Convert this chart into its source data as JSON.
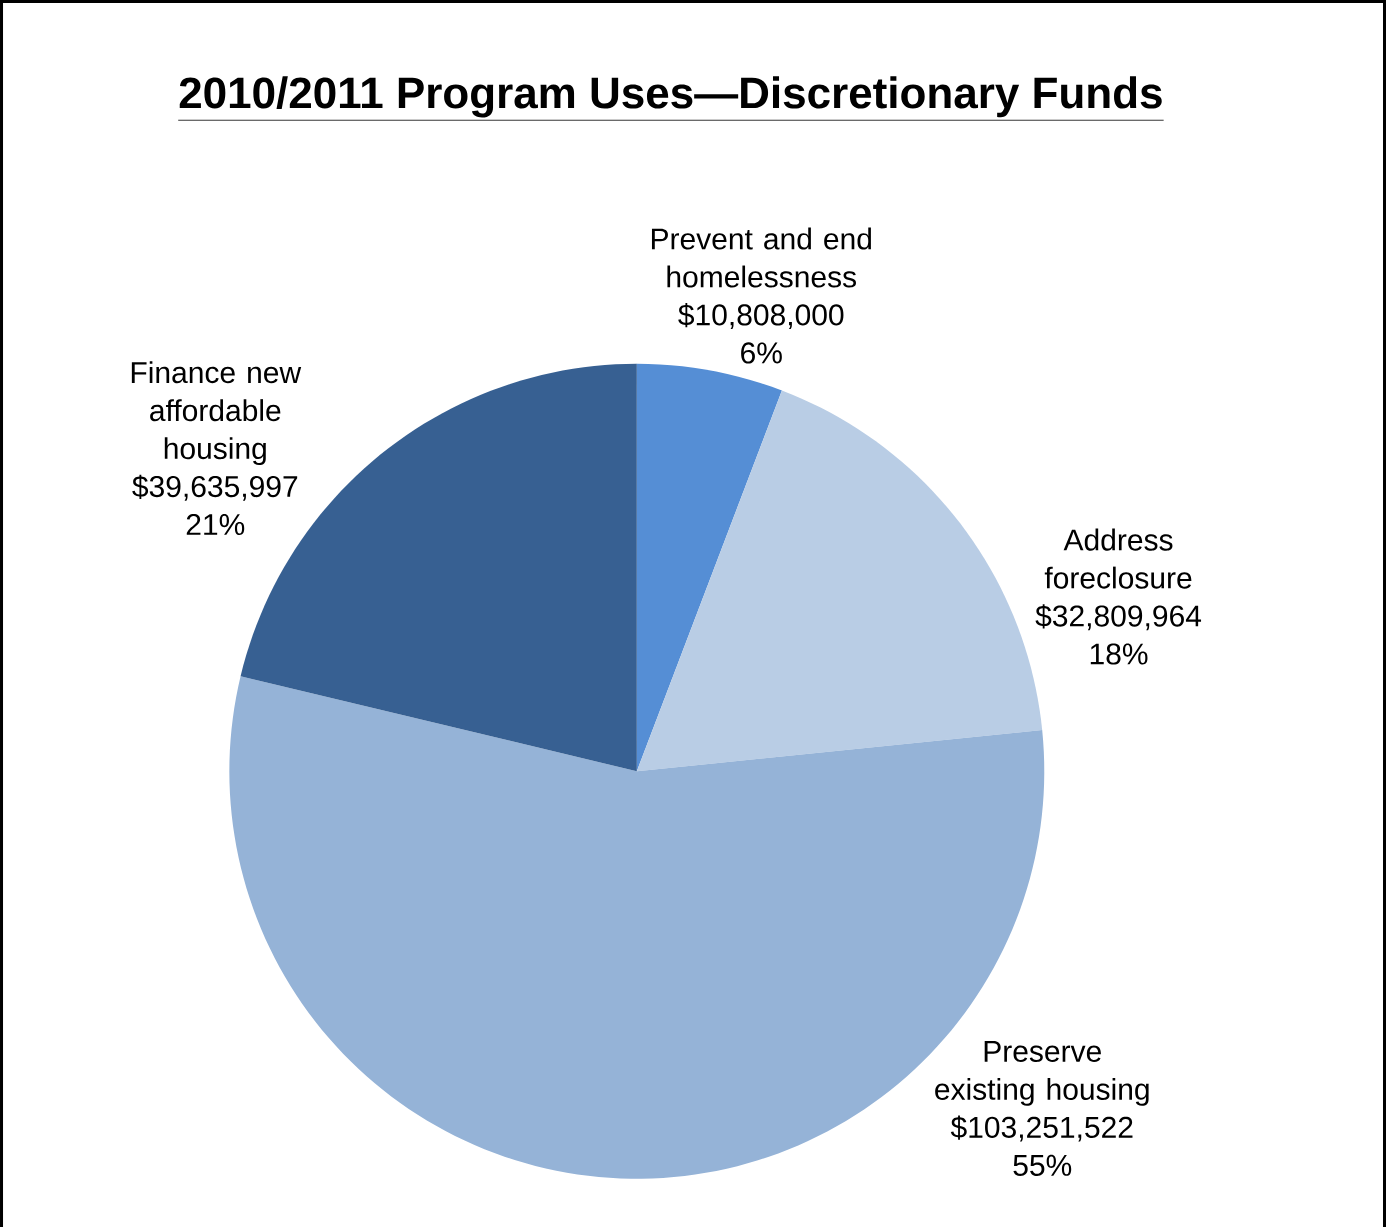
{
  "chart_data": {
    "type": "pie",
    "title": "2010/2011 Program Uses—Discretionary Funds",
    "categories": [
      "Prevent and end homelessness",
      "Address foreclosure",
      "Preserve existing housing",
      "Finance new affordable housing"
    ],
    "values": [
      10808000,
      32809964,
      103251522,
      39635997
    ],
    "value_labels": [
      "$10,808,000",
      "$32,809,964",
      "$103,251,522",
      "$39,635,997"
    ],
    "annotations": [
      "6%",
      "18%",
      "55%",
      "21%"
    ],
    "colors": [
      "#558ed5",
      "#b9cde5",
      "#95b3d7",
      "#376092"
    ]
  }
}
